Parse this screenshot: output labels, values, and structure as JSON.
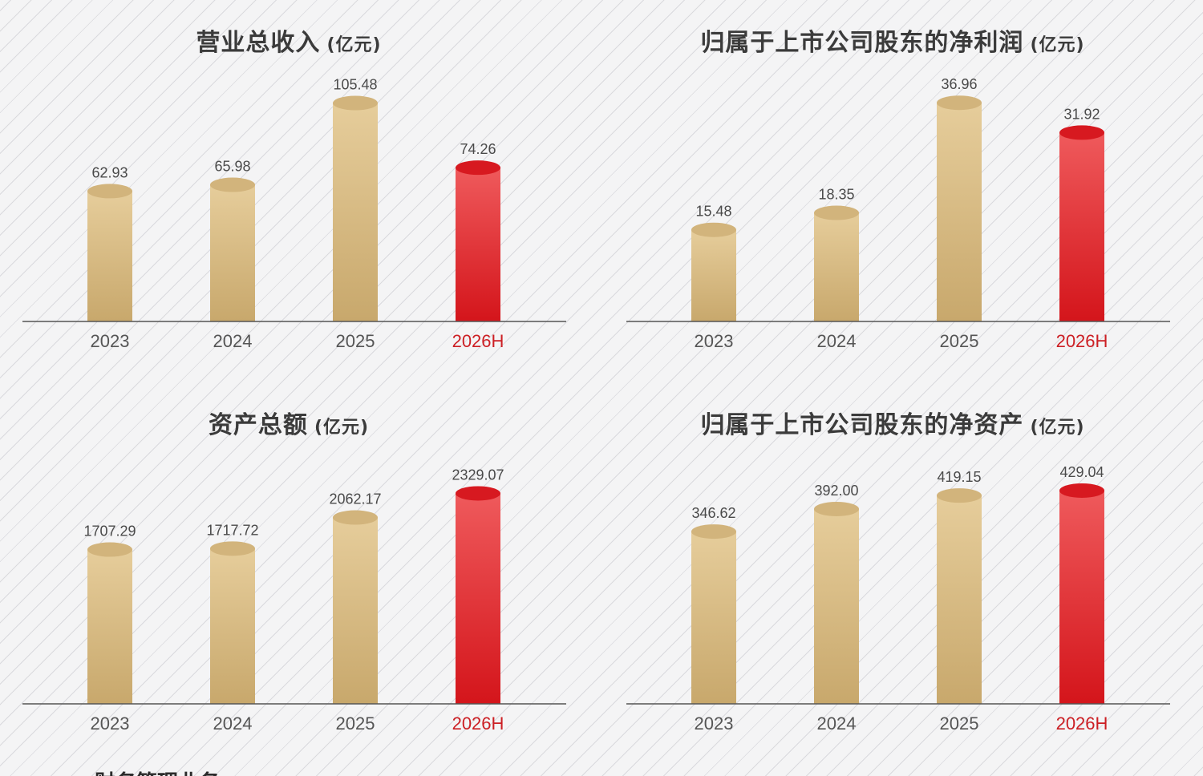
{
  "colors": {
    "normal_bar_top": "#e6cd9b",
    "normal_bar_bottom": "#c8a86c",
    "normal_cap": "#d2b47c",
    "highlight_bar_top": "#ef5a5c",
    "highlight_bar_bottom": "#d4151b",
    "highlight_cap": "#d71920",
    "highlight_tick": "#cc1f24",
    "axis": "#555555"
  },
  "chart_data": [
    {
      "type": "bar",
      "title": "营业总收入",
      "unit": "(亿元)",
      "categories": [
        "2023",
        "2024",
        "2025",
        "2026H"
      ],
      "values": [
        62.93,
        65.98,
        105.48,
        74.26
      ],
      "value_labels": [
        "62.93",
        "65.98",
        "105.48",
        "74.26"
      ],
      "highlight_category": "2026H",
      "ylim": [
        0,
        120
      ]
    },
    {
      "type": "bar",
      "title": "归属于上市公司股东的净利润",
      "unit": "(亿元)",
      "categories": [
        "2023",
        "2024",
        "2025",
        "2026H"
      ],
      "values": [
        15.48,
        18.35,
        36.96,
        31.92
      ],
      "value_labels": [
        "15.48",
        "18.35",
        "36.96",
        "31.92"
      ],
      "highlight_category": "2026H",
      "ylim": [
        0,
        42
      ]
    },
    {
      "type": "bar",
      "title": "资产总额",
      "unit": "(亿元)",
      "categories": [
        "2023",
        "2024",
        "2025",
        "2026H"
      ],
      "values": [
        1707.29,
        1717.72,
        2062.17,
        2329.07
      ],
      "value_labels": [
        "1707.29",
        "1717.72",
        "2062.17",
        "2329.07"
      ],
      "highlight_category": "2026H",
      "ylim": [
        0,
        2750
      ]
    },
    {
      "type": "bar",
      "title": "归属于上市公司股东的净资产",
      "unit": "(亿元)",
      "categories": [
        "2023",
        "2024",
        "2025",
        "2026H"
      ],
      "values": [
        346.62,
        392.0,
        419.15,
        429.04
      ],
      "value_labels": [
        "346.62",
        "392.00",
        "419.15",
        "429.04"
      ],
      "highlight_category": "2026H",
      "ylim": [
        0,
        500
      ]
    }
  ],
  "footer_fragment": "财务管理业务"
}
